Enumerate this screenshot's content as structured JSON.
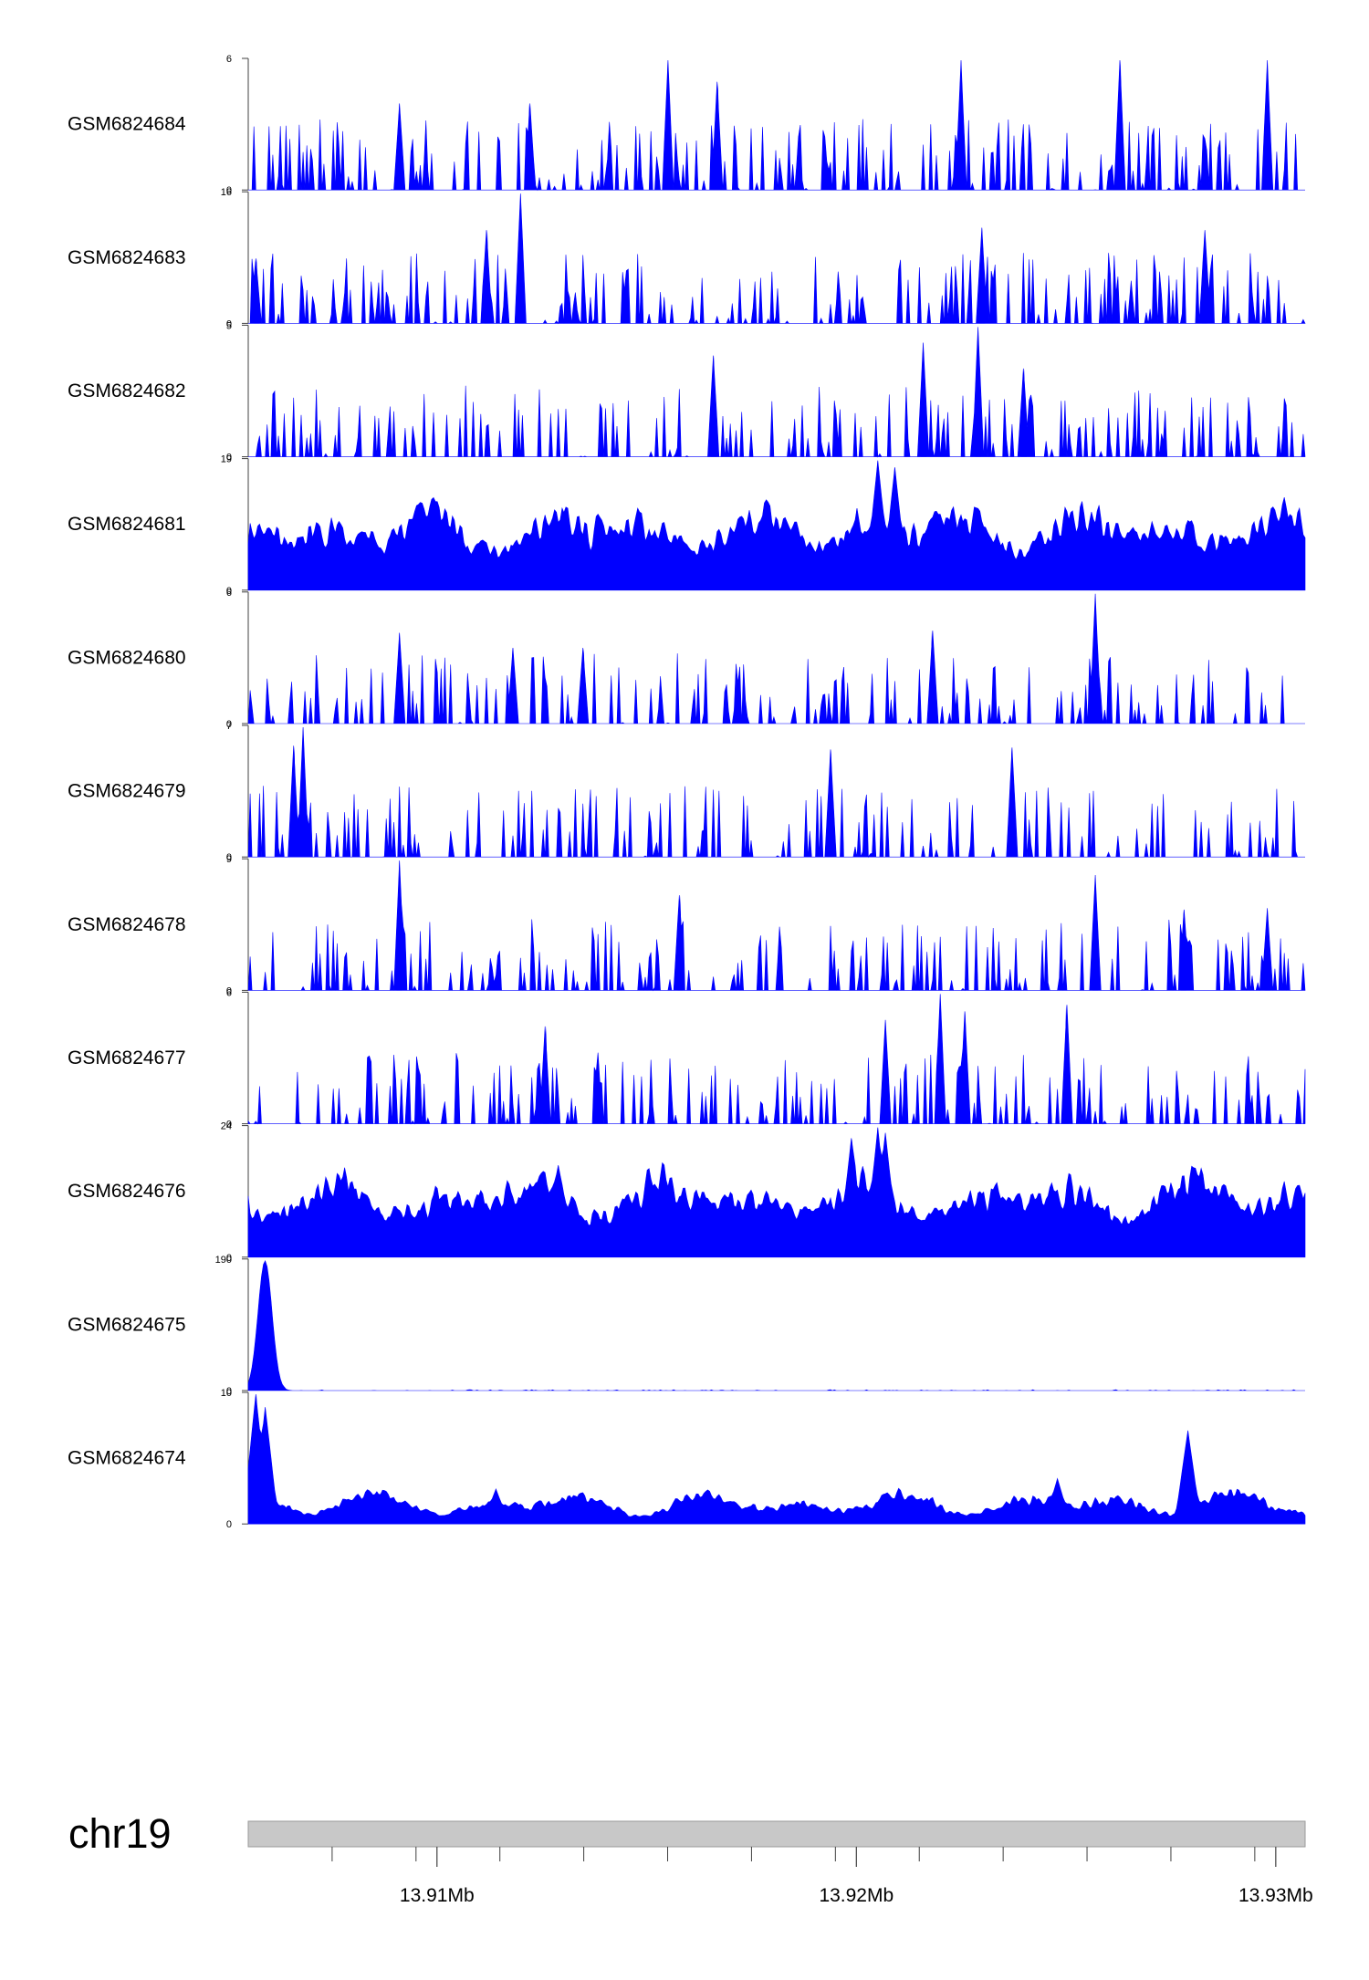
{
  "chart_data": {
    "type": "area",
    "title": "",
    "xlabel": "",
    "ylabel": "",
    "xlim": [
      13.9055,
      13.9307
    ],
    "series_color": "#0000ff",
    "axis_color": "#404040",
    "ideogram_color": "#c8c8c8",
    "tracks": [
      {
        "name": "GSM6824684",
        "ymax": 6,
        "ymin": 0,
        "ymax_label": "6",
        "ymin_label": "0",
        "pattern": "sparse",
        "seed": 84,
        "peaks": [
          [
            13.9155,
            6.0
          ],
          [
            13.9225,
            6.0
          ],
          [
            13.9263,
            6.0
          ],
          [
            13.9298,
            6.0
          ],
          [
            13.9167,
            5.0
          ],
          [
            13.9122,
            4.0
          ],
          [
            13.9091,
            4.0
          ]
        ]
      },
      {
        "name": "GSM6824683",
        "ymax": 16,
        "ymin": 0,
        "ymax_label": "16",
        "ymin_label": "0",
        "pattern": "sparse",
        "seed": 83,
        "peaks": [
          [
            13.912,
            16.0
          ],
          [
            13.9112,
            11.5
          ],
          [
            13.923,
            11.8
          ],
          [
            13.9283,
            11.5
          ],
          [
            13.9057,
            8.0
          ]
        ]
      },
      {
        "name": "GSM6824682",
        "ymax": 5,
        "ymin": 0,
        "ymax_label": "5",
        "ymin_label": "0",
        "pattern": "sparse",
        "seed": 82,
        "peaks": [
          [
            13.9229,
            5.0
          ],
          [
            13.9216,
            4.4
          ],
          [
            13.9166,
            3.9
          ],
          [
            13.924,
            3.4
          ]
        ]
      },
      {
        "name": "GSM6824681",
        "ymax": 19,
        "ymin": 0,
        "ymax_label": "19",
        "ymin_label": "0",
        "pattern": "dense",
        "seed": 81,
        "peaks": [
          [
            13.9205,
            19.0
          ],
          [
            13.9209,
            18.0
          ],
          [
            13.92,
            12.0
          ],
          [
            13.913,
            12.0
          ],
          [
            13.9148,
            12.0
          ]
        ]
      },
      {
        "name": "GSM6824680",
        "ymax": 6,
        "ymin": 0,
        "ymax_label": "6",
        "ymin_label": "0",
        "pattern": "sparse",
        "seed": 80,
        "peaks": [
          [
            13.9257,
            6.0
          ],
          [
            13.9091,
            4.2
          ],
          [
            13.9118,
            3.5
          ],
          [
            13.9135,
            3.5
          ],
          [
            13.9218,
            4.3
          ]
        ]
      },
      {
        "name": "GSM6824679",
        "ymax": 7,
        "ymin": 0,
        "ymax_label": "7",
        "ymin_label": "0",
        "pattern": "sparse",
        "seed": 79,
        "peaks": [
          [
            13.9068,
            7.0
          ],
          [
            13.9066,
            6.0
          ],
          [
            13.9237,
            5.9
          ],
          [
            13.9194,
            5.8
          ]
        ]
      },
      {
        "name": "GSM6824678",
        "ymax": 9,
        "ymin": 0,
        "ymax_label": "9",
        "ymin_label": "0",
        "pattern": "sparse",
        "seed": 78,
        "peaks": [
          [
            13.9091,
            9.0
          ],
          [
            13.9257,
            8.0
          ],
          [
            13.9158,
            6.6
          ],
          [
            13.9298,
            5.7
          ],
          [
            13.9278,
            5.6
          ]
        ]
      },
      {
        "name": "GSM6824677",
        "ymax": 6,
        "ymin": 0,
        "ymax_label": "6",
        "ymin_label": "0",
        "pattern": "sparse",
        "seed": 77,
        "peaks": [
          [
            13.922,
            6.0
          ],
          [
            13.925,
            5.5
          ],
          [
            13.9226,
            5.2
          ],
          [
            13.9207,
            4.8
          ],
          [
            13.9126,
            4.5
          ]
        ]
      },
      {
        "name": "GSM6824676",
        "ymax": 24,
        "ymin": 0,
        "ymax_label": "24",
        "ymin_label": "0",
        "pattern": "dense",
        "seed": 76,
        "peaks": [
          [
            13.9205,
            24.0
          ],
          [
            13.9207,
            23.0
          ],
          [
            13.9199,
            22.0
          ],
          [
            13.9129,
            17.0
          ],
          [
            13.9302,
            14.0
          ]
        ]
      },
      {
        "name": "GSM6824675",
        "ymax": 190,
        "ymin": 0,
        "ymax_label": "190",
        "ymin_label": "0",
        "pattern": "spike",
        "seed": 75,
        "peaks": [
          [
            13.9059,
            190.0
          ]
        ]
      },
      {
        "name": "GSM6824674",
        "ymax": 10,
        "ymin": 0,
        "ymax_label": "10",
        "ymin_label": "0",
        "pattern": "low",
        "seed": 74,
        "peaks": [
          [
            13.9057,
            10.0
          ],
          [
            13.9059,
            9.0
          ],
          [
            13.9279,
            7.2
          ],
          [
            13.9248,
            3.5
          ],
          [
            13.9114,
            2.7
          ]
        ]
      }
    ],
    "chromosome": "chr19",
    "x_minor_ticks": [
      13.9075,
      13.9095,
      13.9115,
      13.9135,
      13.9155,
      13.9175,
      13.9195,
      13.9215,
      13.9235,
      13.9255,
      13.9275,
      13.9295
    ],
    "x_major_ticks": [
      13.91,
      13.92,
      13.93
    ],
    "x_tick_labels": [
      "13.91Mb",
      "13.92Mb",
      "13.93Mb"
    ]
  }
}
